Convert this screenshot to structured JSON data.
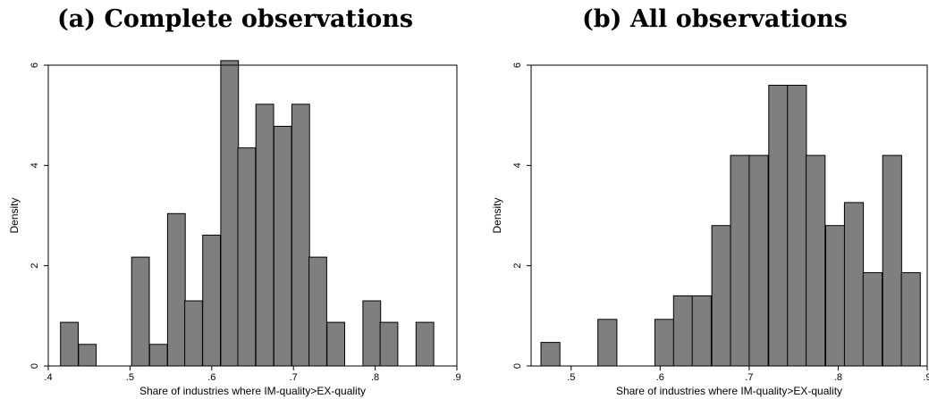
{
  "panels": [
    {
      "title": "(a) Complete observations"
    },
    {
      "title": "(b) All observations"
    }
  ],
  "chart_data": [
    {
      "type": "bar",
      "title": "(a) Complete observations",
      "xlabel": "Share of industries where IM-quality>EX-quality",
      "ylabel": "Density",
      "xlim": [
        0.4,
        0.9
      ],
      "ylim": [
        0,
        6
      ],
      "xticks": [
        {
          "value": 0.4,
          "label": ".4"
        },
        {
          "value": 0.5,
          "label": ".5"
        },
        {
          "value": 0.6,
          "label": ".6"
        },
        {
          "value": 0.7,
          "label": ".7"
        },
        {
          "value": 0.8,
          "label": ".8"
        },
        {
          "value": 0.9,
          "label": ".9"
        }
      ],
      "yticks": [
        {
          "value": 0,
          "label": "0"
        },
        {
          "value": 2,
          "label": "2"
        },
        {
          "value": 4,
          "label": "4"
        },
        {
          "value": 6,
          "label": "6"
        }
      ],
      "bin_width": 0.0217,
      "bins": [
        {
          "x0": 0.415,
          "y": 0.87
        },
        {
          "x0": 0.437,
          "y": 0.43
        },
        {
          "x0": 0.459,
          "y": 0
        },
        {
          "x0": 0.48,
          "y": 0
        },
        {
          "x0": 0.502,
          "y": 2.17
        },
        {
          "x0": 0.524,
          "y": 0.43
        },
        {
          "x0": 0.546,
          "y": 3.04
        },
        {
          "x0": 0.567,
          "y": 1.3
        },
        {
          "x0": 0.589,
          "y": 2.61
        },
        {
          "x0": 0.611,
          "y": 6.09
        },
        {
          "x0": 0.632,
          "y": 4.35
        },
        {
          "x0": 0.654,
          "y": 5.22
        },
        {
          "x0": 0.676,
          "y": 4.78
        },
        {
          "x0": 0.698,
          "y": 5.22
        },
        {
          "x0": 0.719,
          "y": 2.17
        },
        {
          "x0": 0.741,
          "y": 0.87
        },
        {
          "x0": 0.763,
          "y": 0
        },
        {
          "x0": 0.785,
          "y": 1.3
        },
        {
          "x0": 0.806,
          "y": 0.87
        },
        {
          "x0": 0.828,
          "y": 0
        },
        {
          "x0": 0.85,
          "y": 0.87
        }
      ]
    },
    {
      "type": "bar",
      "title": "(b) All observations",
      "xlabel": "Share of industries where IM-quality>EX-quality",
      "ylabel": "Density",
      "xlim": [
        0.455,
        0.9
      ],
      "ylim": [
        0,
        6
      ],
      "xticks": [
        {
          "value": 0.5,
          "label": ".5"
        },
        {
          "value": 0.6,
          "label": ".6"
        },
        {
          "value": 0.7,
          "label": ".7"
        },
        {
          "value": 0.8,
          "label": ".8"
        },
        {
          "value": 0.9,
          "label": ".9"
        }
      ],
      "yticks": [
        {
          "value": 0,
          "label": "0"
        },
        {
          "value": 2,
          "label": "2"
        },
        {
          "value": 4,
          "label": "4"
        },
        {
          "value": 6,
          "label": "6"
        }
      ],
      "bin_width": 0.0213,
      "bins": [
        {
          "x0": 0.466,
          "y": 0.47
        },
        {
          "x0": 0.487,
          "y": 0
        },
        {
          "x0": 0.508,
          "y": 0
        },
        {
          "x0": 0.53,
          "y": 0.93
        },
        {
          "x0": 0.551,
          "y": 0
        },
        {
          "x0": 0.572,
          "y": 0
        },
        {
          "x0": 0.594,
          "y": 0.93
        },
        {
          "x0": 0.615,
          "y": 1.4
        },
        {
          "x0": 0.636,
          "y": 1.4
        },
        {
          "x0": 0.658,
          "y": 2.8
        },
        {
          "x0": 0.679,
          "y": 4.2
        },
        {
          "x0": 0.7,
          "y": 4.2
        },
        {
          "x0": 0.722,
          "y": 5.6
        },
        {
          "x0": 0.743,
          "y": 5.6
        },
        {
          "x0": 0.764,
          "y": 4.2
        },
        {
          "x0": 0.786,
          "y": 2.8
        },
        {
          "x0": 0.807,
          "y": 3.26
        },
        {
          "x0": 0.828,
          "y": 1.86
        },
        {
          "x0": 0.85,
          "y": 4.2
        },
        {
          "x0": 0.871,
          "y": 1.86
        }
      ]
    }
  ]
}
